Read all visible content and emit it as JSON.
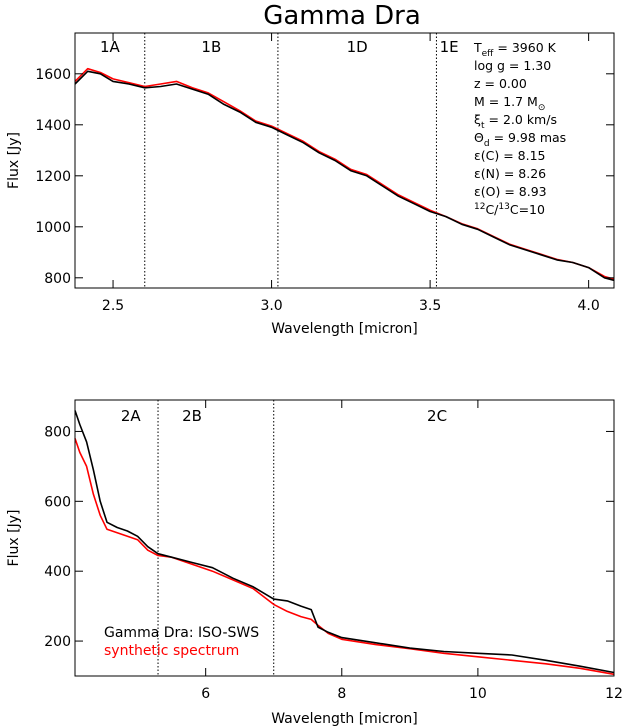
{
  "title": "Gamma Dra",
  "chart_data": [
    {
      "type": "line",
      "xlabel": "Wavelength [micron]",
      "ylabel": "Flux [Jy]",
      "xlim": [
        2.38,
        4.08
      ],
      "ylim": [
        760,
        1760
      ],
      "xticks": [
        2.5,
        3.0,
        3.5,
        4.0
      ],
      "xtick_labels": [
        "2.5",
        "3.0",
        "3.5",
        "4.0"
      ],
      "yticks": [
        800,
        1000,
        1200,
        1400,
        1600
      ],
      "ytick_labels": [
        "800",
        "1000",
        "1200",
        "1400",
        "1600"
      ],
      "band_boundaries": [
        2.6,
        3.02,
        3.52
      ],
      "bands": [
        {
          "label": "1A",
          "x": 2.49
        },
        {
          "label": "1B",
          "x": 2.81
        },
        {
          "label": "1D",
          "x": 3.27
        },
        {
          "label": "1E",
          "x": 3.56
        }
      ],
      "parameters": [
        "T",
        "log g = 1.30",
        "z = 0.00",
        "M = 1.7 M",
        "ξ",
        "Θ",
        "ε(C) = 8.15",
        "ε(N) = 8.26",
        "ε(O) = 8.93",
        "C/",
        "C=10"
      ],
      "param_pieces": {
        "teff_sub": "eff",
        "teff_val": "= 3960 K",
        "mass_sym": "⊙",
        "xi_sub": "t",
        "xi_val": "= 2.0 km/s",
        "theta_sub": "d",
        "theta_val": "= 9.98 mas",
        "c12": "12",
        "c13": "13"
      },
      "series": [
        {
          "name": "Gamma Dra: ISO-SWS",
          "color": "#000000",
          "x": [
            2.38,
            2.42,
            2.46,
            2.5,
            2.55,
            2.6,
            2.65,
            2.7,
            2.75,
            2.8,
            2.85,
            2.9,
            2.95,
            3.0,
            3.05,
            3.1,
            3.15,
            3.2,
            3.25,
            3.3,
            3.35,
            3.4,
            3.45,
            3.5,
            3.55,
            3.6,
            3.65,
            3.7,
            3.75,
            3.8,
            3.85,
            3.9,
            3.95,
            4.0,
            4.05,
            4.08
          ],
          "values": [
            1560,
            1610,
            1600,
            1570,
            1560,
            1545,
            1550,
            1560,
            1540,
            1520,
            1480,
            1450,
            1410,
            1390,
            1360,
            1330,
            1290,
            1260,
            1220,
            1200,
            1160,
            1120,
            1090,
            1060,
            1040,
            1010,
            990,
            960,
            930,
            910,
            890,
            870,
            860,
            840,
            800,
            790
          ]
        },
        {
          "name": "synthetic spectrum",
          "color": "#ff0000",
          "x": [
            2.38,
            2.42,
            2.46,
            2.5,
            2.55,
            2.6,
            2.65,
            2.7,
            2.75,
            2.8,
            2.85,
            2.9,
            2.95,
            3.0,
            3.05,
            3.1,
            3.15,
            3.2,
            3.25,
            3.3,
            3.35,
            3.4,
            3.45,
            3.5,
            3.55,
            3.6,
            3.65,
            3.7,
            3.75,
            3.8,
            3.85,
            3.9,
            3.95,
            4.0,
            4.05,
            4.08
          ],
          "values": [
            1570,
            1620,
            1605,
            1580,
            1565,
            1550,
            1560,
            1570,
            1545,
            1525,
            1490,
            1455,
            1415,
            1395,
            1365,
            1335,
            1295,
            1265,
            1225,
            1205,
            1165,
            1125,
            1095,
            1065,
            1040,
            1012,
            992,
            962,
            932,
            912,
            892,
            872,
            860,
            840,
            805,
            795
          ]
        }
      ]
    },
    {
      "type": "line",
      "xlabel": "Wavelength [micron]",
      "ylabel": "Flux [Jy]",
      "xlim": [
        4.08,
        12.0
      ],
      "ylim": [
        100,
        890
      ],
      "xticks": [
        6,
        8,
        10,
        12
      ],
      "xtick_labels": [
        "6",
        "8",
        "10",
        "12"
      ],
      "yticks": [
        200,
        400,
        600,
        800
      ],
      "ytick_labels": [
        "200",
        "400",
        "600",
        "800"
      ],
      "band_boundaries": [
        5.3,
        7.0
      ],
      "bands": [
        {
          "label": "2A",
          "x": 4.9
        },
        {
          "label": "2B",
          "x": 5.8
        },
        {
          "label": "2C",
          "x": 9.4
        }
      ],
      "series": [
        {
          "name": "Gamma Dra: ISO-SWS",
          "color": "#000000",
          "x": [
            4.08,
            4.15,
            4.25,
            4.35,
            4.45,
            4.55,
            4.7,
            4.85,
            5.0,
            5.15,
            5.3,
            5.5,
            5.8,
            6.1,
            6.4,
            6.7,
            7.0,
            7.2,
            7.4,
            7.55,
            7.65,
            7.8,
            8.0,
            8.5,
            9.0,
            9.5,
            10.0,
            10.5,
            11.0,
            11.5,
            12.0
          ],
          "values": [
            860,
            820,
            770,
            690,
            600,
            540,
            525,
            515,
            500,
            470,
            450,
            440,
            425,
            410,
            380,
            355,
            320,
            315,
            300,
            290,
            240,
            225,
            210,
            195,
            180,
            170,
            165,
            160,
            145,
            128,
            110
          ]
        },
        {
          "name": "synthetic spectrum",
          "color": "#ff0000",
          "x": [
            4.08,
            4.15,
            4.25,
            4.35,
            4.45,
            4.55,
            4.7,
            4.85,
            5.0,
            5.15,
            5.3,
            5.5,
            5.8,
            6.1,
            6.4,
            6.7,
            7.0,
            7.2,
            7.4,
            7.55,
            7.65,
            7.8,
            8.0,
            8.5,
            9.0,
            9.5,
            10.0,
            10.5,
            11.0,
            11.5,
            12.0
          ],
          "values": [
            780,
            740,
            700,
            620,
            560,
            520,
            510,
            500,
            490,
            460,
            445,
            440,
            420,
            400,
            375,
            350,
            305,
            285,
            270,
            262,
            245,
            222,
            205,
            190,
            178,
            165,
            155,
            145,
            135,
            122,
            105
          ]
        }
      ],
      "legend": {
        "placement": "bottom-left",
        "entries": [
          "Gamma Dra: ISO-SWS",
          "synthetic spectrum"
        ]
      }
    }
  ]
}
